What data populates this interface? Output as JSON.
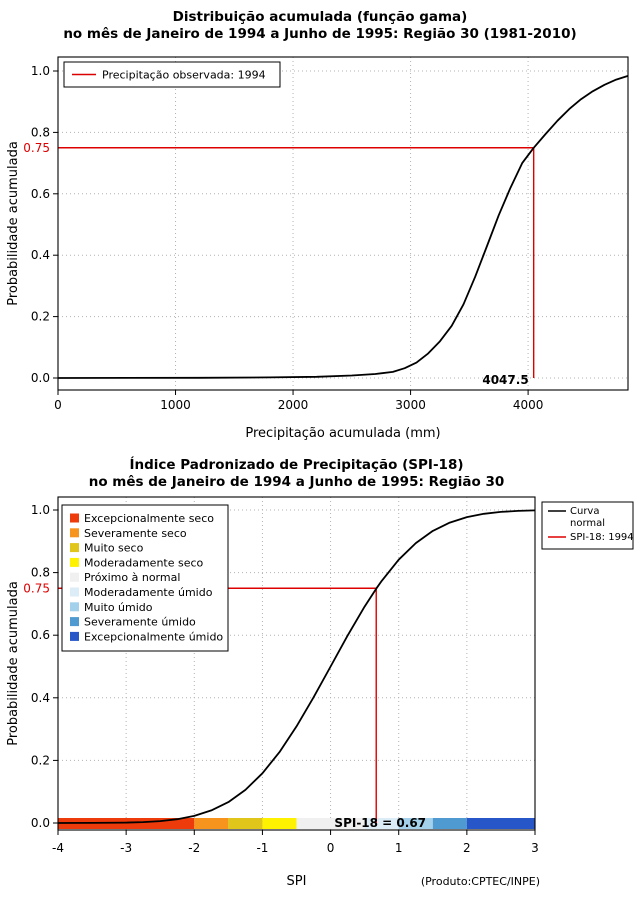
{
  "accent_color": "#DD0000",
  "chart_data": [
    {
      "id": "gamma",
      "type": "line",
      "title": "Distribuição acumulada (função gama)",
      "subtitle": "no mês de Janeiro de 1994 a Junho de 1995: Região 30 (1981-2010)",
      "xlabel": "Precipitação acumulada (mm)",
      "ylabel": "Probabilidade acumulada",
      "x_domain": [
        0,
        4850
      ],
      "y_domain": [
        0,
        1
      ],
      "x_ticks": [
        "0",
        "1000",
        "2000",
        "3000",
        "4000"
      ],
      "y_ticks": [
        "0.0",
        "0.2",
        "0.4",
        "0.6",
        "0.8",
        "1.0"
      ],
      "grid": true,
      "ref_color": "#DD0000",
      "reference": {
        "prob": 0.75,
        "prob_label": "0.75",
        "x": 4047.5,
        "x_label": "4047.5"
      },
      "legend": [
        {
          "label": "Precipitação observada: 1994",
          "color": "#DD0000"
        }
      ],
      "series": [
        {
          "name": "Distribuição gama acumulada",
          "color": "#000000",
          "x": [
            0,
            600,
            1200,
            1800,
            2200,
            2500,
            2700,
            2850,
            2950,
            3050,
            3150,
            3250,
            3350,
            3450,
            3550,
            3650,
            3750,
            3850,
            3950,
            4047.5,
            4150,
            4250,
            4350,
            4450,
            4550,
            4650,
            4750,
            4850
          ],
          "y": [
            0,
            0.0002,
            0.0008,
            0.002,
            0.004,
            0.008,
            0.013,
            0.02,
            0.032,
            0.05,
            0.08,
            0.12,
            0.17,
            0.24,
            0.33,
            0.43,
            0.53,
            0.62,
            0.7,
            0.75,
            0.795,
            0.838,
            0.876,
            0.908,
            0.934,
            0.955,
            0.972,
            0.984
          ]
        }
      ]
    },
    {
      "id": "spi",
      "type": "line",
      "title": "Índice Padronizado de Precipitação (SPI-18)",
      "subtitle": "no mês de Janeiro de 1994 a Junho de 1995: Região 30",
      "xlabel": "SPI",
      "ylabel": "Probabilidade acumulada",
      "x_domain": [
        -4,
        3
      ],
      "y_domain": [
        0,
        1
      ],
      "x_ticks": [
        "-4",
        "-3",
        "-2",
        "-1",
        "0",
        "1",
        "2",
        "3"
      ],
      "y_ticks": [
        "0.0",
        "0.2",
        "0.4",
        "0.6",
        "0.8",
        "1.0"
      ],
      "grid": true,
      "ref_color": "#DD0000",
      "reference": {
        "prob": 0.75,
        "prob_label": "0.75",
        "x": 0.67,
        "x_label": "SPI-18 = 0.67"
      },
      "line_legend": [
        {
          "lines": [
            "Curva",
            "normal"
          ],
          "color": "#000000"
        },
        {
          "lines": [
            "SPI-18: 1994"
          ],
          "color": "#DD0000"
        }
      ],
      "categories": [
        {
          "label": "Excepcionalmente seco",
          "color": "#EE3B0B",
          "from": -4,
          "to": -2
        },
        {
          "label": "Severamente seco",
          "color": "#F7941D",
          "from": -2,
          "to": -1.5
        },
        {
          "label": "Muito seco",
          "color": "#E0C51B",
          "from": -1.5,
          "to": -1
        },
        {
          "label": "Moderadamente seco",
          "color": "#FFF200",
          "from": -1,
          "to": -0.5
        },
        {
          "label": "Próximo à normal",
          "color": "#F0F0F0",
          "from": -0.5,
          "to": 0.5
        },
        {
          "label": "Moderadamente úmido",
          "color": "#DCEDF8",
          "from": 0.5,
          "to": 1
        },
        {
          "label": "Muito úmido",
          "color": "#A3D1EB",
          "from": 1,
          "to": 1.5
        },
        {
          "label": "Severamente úmido",
          "color": "#4F9BD1",
          "from": 1.5,
          "to": 2
        },
        {
          "label": "Excepcionalmente úmido",
          "color": "#2656C8",
          "from": 2,
          "to": 3
        }
      ],
      "series": [
        {
          "name": "Curva normal",
          "color": "#000000",
          "x": [
            -4,
            -3.5,
            -3,
            -2.75,
            -2.5,
            -2.25,
            -2,
            -1.75,
            -1.5,
            -1.25,
            -1,
            -0.75,
            -0.5,
            -0.25,
            0,
            0.25,
            0.5,
            0.67,
            0.75,
            1,
            1.25,
            1.5,
            1.75,
            2,
            2.25,
            2.5,
            2.75,
            3
          ],
          "y": [
            0.0,
            0.0002,
            0.0013,
            0.003,
            0.0062,
            0.0122,
            0.0228,
            0.0401,
            0.0668,
            0.1056,
            0.1587,
            0.2266,
            0.3085,
            0.4013,
            0.5,
            0.5987,
            0.6915,
            0.7486,
            0.7734,
            0.8413,
            0.8944,
            0.9332,
            0.9599,
            0.9772,
            0.9878,
            0.9938,
            0.997,
            0.9987
          ]
        }
      ],
      "credit": "(Produto:CPTEC/INPE)"
    }
  ]
}
